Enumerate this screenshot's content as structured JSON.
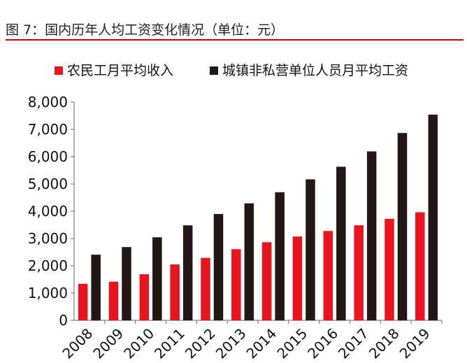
{
  "figure": {
    "title": "图 7：国内历年人均工资变化情况（单位：元）"
  },
  "chart_data": {
    "type": "bar",
    "categories": [
      "2008",
      "2009",
      "2010",
      "2011",
      "2012",
      "2013",
      "2014",
      "2015",
      "2016",
      "2017",
      "2018",
      "2019"
    ],
    "series": [
      {
        "name": "农民工月平均收入",
        "color": "#e8141e",
        "values": [
          1340,
          1417,
          1690,
          2049,
          2290,
          2609,
          2864,
          3072,
          3275,
          3485,
          3721,
          3962
        ]
      },
      {
        "name": "城镇非私营单位人员月平均工资",
        "color": "#231815",
        "values": [
          2408,
          2687,
          3045,
          3483,
          3897,
          4290,
          4697,
          5169,
          5631,
          6193,
          6868,
          7542
        ]
      }
    ],
    "ylim": [
      0,
      8000
    ],
    "yticks": [
      "0",
      "1,000",
      "2,000",
      "3,000",
      "4,000",
      "5,000",
      "6,000",
      "7,000",
      "8,000"
    ],
    "legend_position": "top",
    "grid": false
  }
}
